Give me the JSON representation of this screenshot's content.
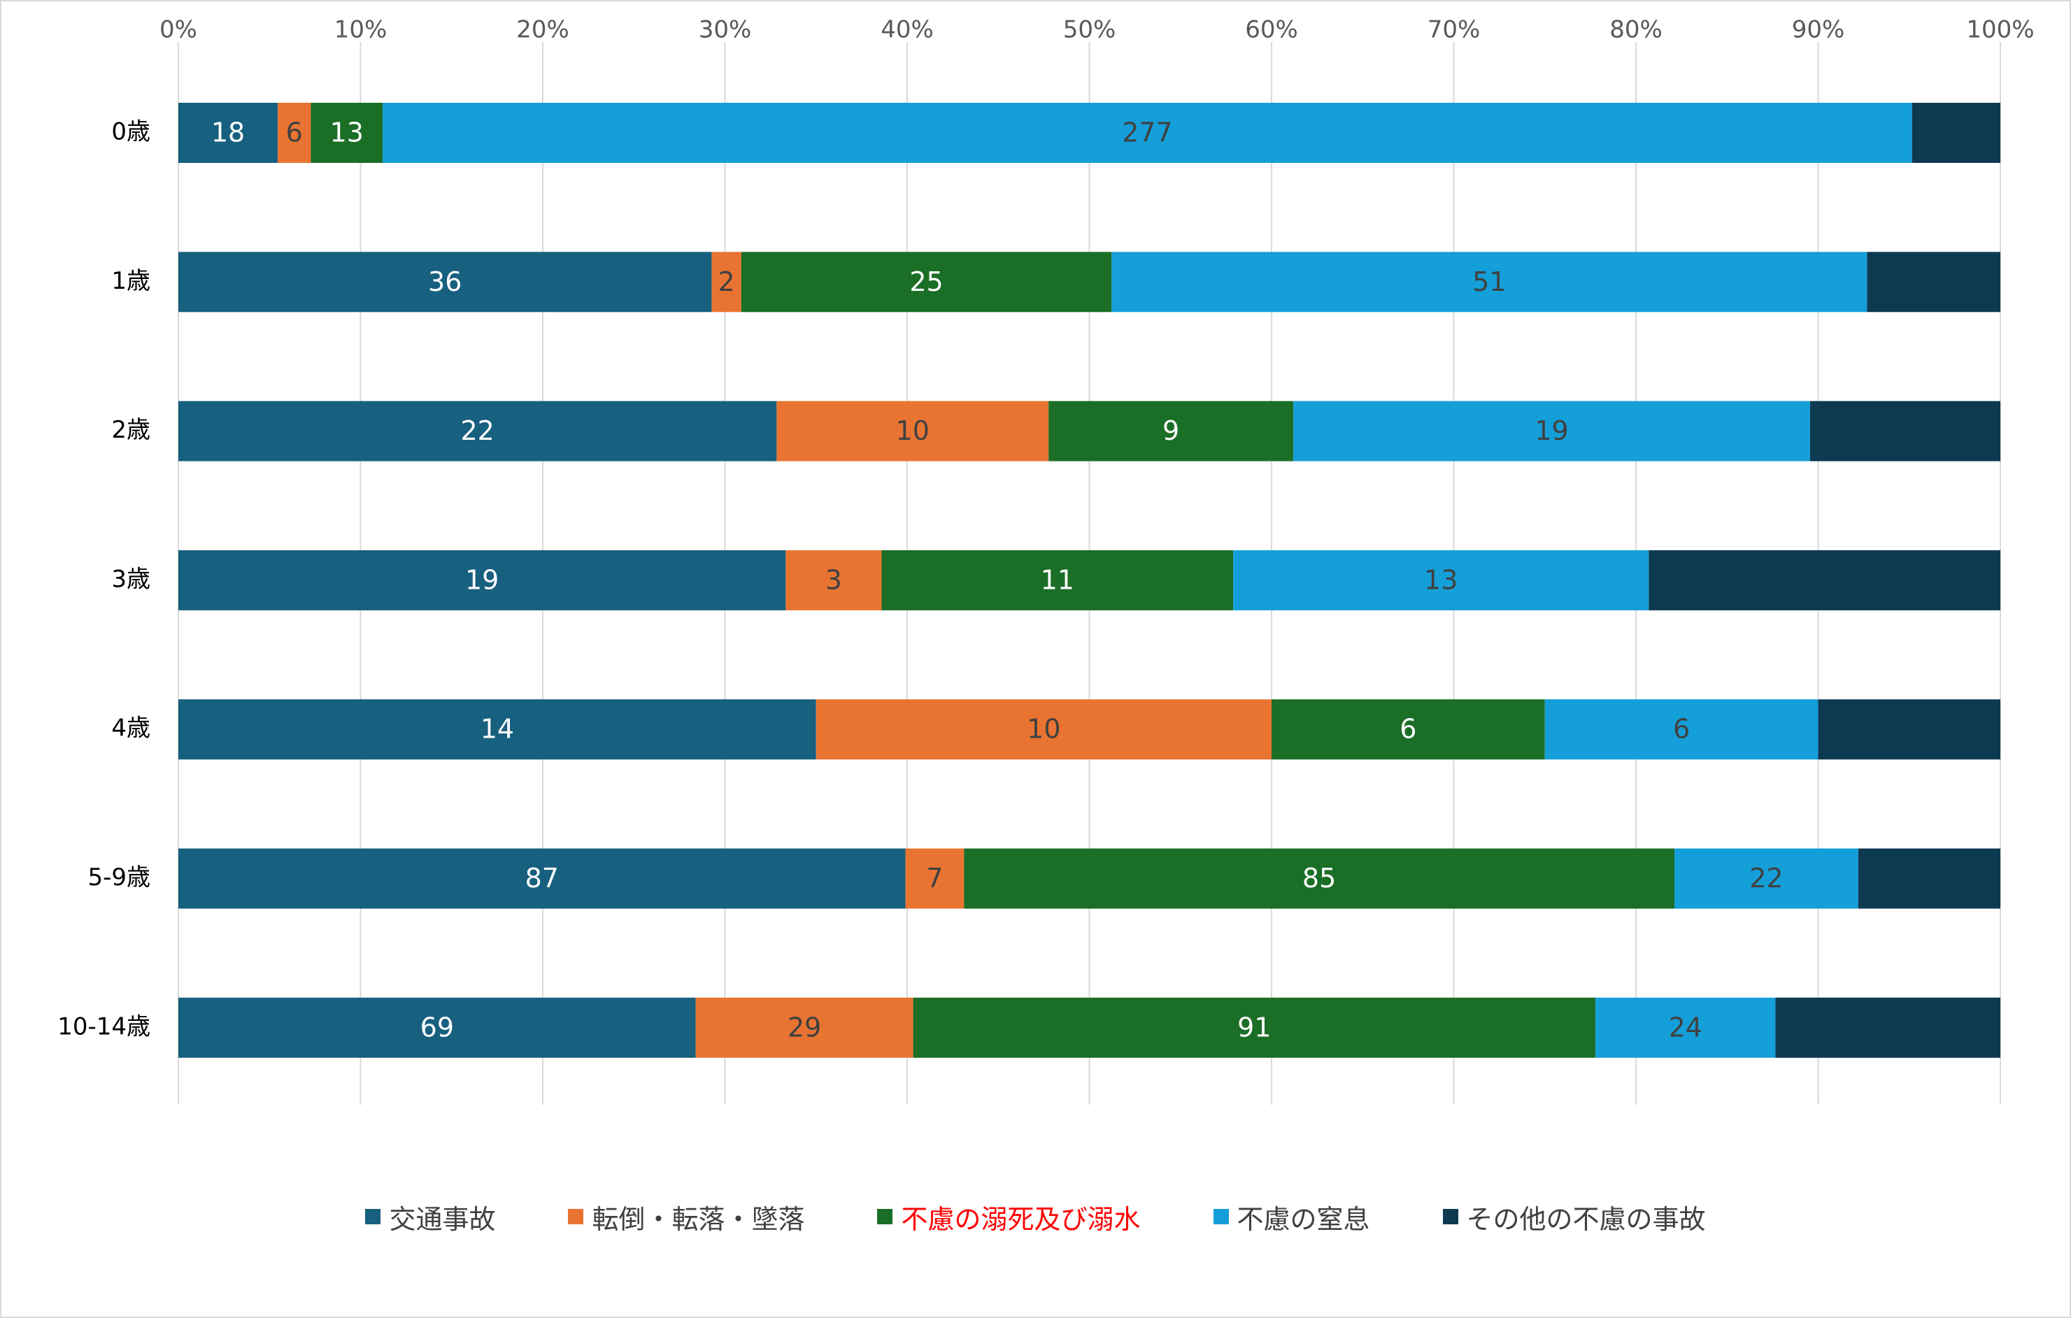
{
  "chart_data": {
    "type": "bar",
    "orientation": "horizontal",
    "stacked": "percent",
    "title": "",
    "xlabel": "",
    "ylabel": "",
    "xlim": [
      0,
      100
    ],
    "x_ticks": [
      "0%",
      "10%",
      "20%",
      "30%",
      "40%",
      "50%",
      "60%",
      "70%",
      "80%",
      "90%",
      "100%"
    ],
    "grid": "vertical",
    "legend_position": "bottom",
    "categories": [
      "0歳",
      "1歳",
      "2歳",
      "3歳",
      "4歳",
      "5-9歳",
      "10-14歳"
    ],
    "series": [
      {
        "name": "交通事故",
        "color": "#17607f",
        "label_color": "#ffffff",
        "legend_color": "#404040",
        "values": [
          18,
          36,
          22,
          19,
          14,
          87,
          69
        ],
        "labels": [
          "18",
          "36",
          "22",
          "19",
          "14",
          "87",
          "69"
        ]
      },
      {
        "name": "転倒・転落・墜落",
        "color": "#e97432",
        "label_color": "#404040",
        "legend_color": "#404040",
        "values": [
          6,
          2,
          10,
          3,
          10,
          7,
          29
        ],
        "labels": [
          "6",
          "2",
          "10",
          "3",
          "10",
          "7",
          "29"
        ]
      },
      {
        "name": "不慮の溺死及び溺水",
        "color": "#1b6e26",
        "label_color": "#ffffff",
        "legend_color": "#ff0000",
        "values": [
          13,
          25,
          9,
          11,
          6,
          85,
          91
        ],
        "labels": [
          "13",
          "25",
          "9",
          "11",
          "6",
          "85",
          "91"
        ]
      },
      {
        "name": "不慮の窒息",
        "color": "#149fd8",
        "label_color": "#404040",
        "legend_color": "#404040",
        "values": [
          277,
          51,
          19,
          13,
          6,
          22,
          24
        ],
        "labels": [
          "277",
          "51",
          "19",
          "13",
          "6",
          "22",
          "24"
        ]
      },
      {
        "name": "その他の不慮の事故",
        "color": "#0e3a51",
        "label_color": "#ffffff",
        "legend_color": "#404040",
        "values": [
          16,
          9,
          7,
          11,
          4,
          17,
          30
        ],
        "labels": [
          "",
          "",
          "",
          "",
          "",
          "",
          ""
        ]
      }
    ]
  }
}
